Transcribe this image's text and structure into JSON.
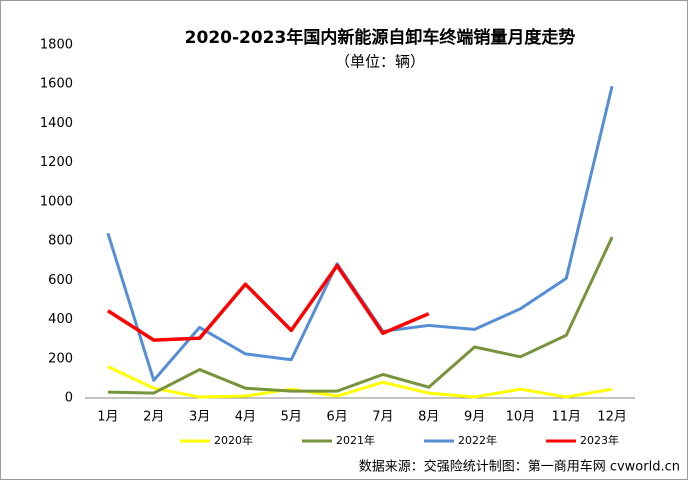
{
  "chart_data": {
    "type": "line",
    "title": "2020-2023年国内新能源自卸车终端销量月度走势",
    "subtitle": "（单位：辆）",
    "source": "数据来源：交强险统计制图：第一商用车网 cvworld.cn",
    "categories": [
      "1月",
      "2月",
      "3月",
      "4月",
      "5月",
      "6月",
      "7月",
      "8月",
      "9月",
      "10月",
      "11月",
      "12月"
    ],
    "series": [
      {
        "name": "2020年",
        "color": "#ffff00",
        "values": [
          160,
          50,
          5,
          10,
          45,
          10,
          80,
          25,
          5,
          45,
          5,
          45
        ]
      },
      {
        "name": "2021年",
        "color": "#77933c",
        "values": [
          30,
          25,
          145,
          50,
          35,
          35,
          120,
          55,
          260,
          210,
          320,
          820
        ]
      },
      {
        "name": "2022年",
        "color": "#558ed5",
        "values": [
          840,
          90,
          360,
          225,
          195,
          685,
          340,
          370,
          350,
          455,
          610,
          1590
        ]
      },
      {
        "name": "2023年",
        "color": "#ff0000",
        "values": [
          445,
          295,
          305,
          580,
          345,
          675,
          330,
          430,
          null,
          null,
          null,
          null
        ]
      }
    ],
    "ylim": [
      0,
      1800
    ],
    "yticks": [
      0,
      200,
      400,
      600,
      800,
      1000,
      1200,
      1400,
      1600,
      1800
    ],
    "grid": false,
    "legend": "bottom"
  }
}
